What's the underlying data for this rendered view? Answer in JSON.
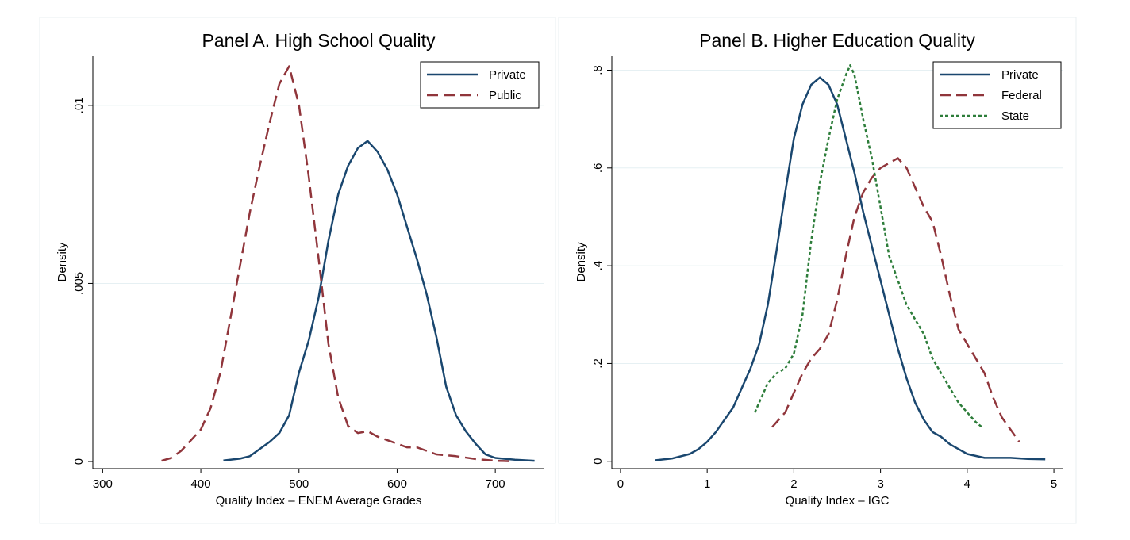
{
  "chart_data": [
    {
      "type": "line",
      "title": "Panel A. High School Quality",
      "xlabel": "Quality Index – ENEM Average Grades",
      "ylabel": "Density",
      "xlim": [
        290,
        750
      ],
      "ylim": [
        -0.0002,
        0.0114
      ],
      "x_ticks": [
        {
          "value": 300,
          "label": "300"
        },
        {
          "value": 400,
          "label": "400"
        },
        {
          "value": 500,
          "label": "500"
        },
        {
          "value": 600,
          "label": "600"
        },
        {
          "value": 700,
          "label": "700"
        }
      ],
      "y_ticks": [
        {
          "value": 0,
          "label": "0"
        },
        {
          "value": 0.005,
          "label": ".005"
        },
        {
          "value": 0.01,
          "label": ".01"
        }
      ],
      "grid": true,
      "legend_position": "top-right",
      "series": [
        {
          "name": "Private",
          "color": "#1a476f",
          "dash": "solid",
          "points": [
            [
              423,
              3e-05
            ],
            [
              440,
              8e-05
            ],
            [
              450,
              0.00015
            ],
            [
              460,
              0.00035
            ],
            [
              470,
              0.00055
            ],
            [
              480,
              0.0008
            ],
            [
              490,
              0.0013
            ],
            [
              500,
              0.0025
            ],
            [
              510,
              0.0034
            ],
            [
              520,
              0.0046
            ],
            [
              530,
              0.0062
            ],
            [
              540,
              0.0075
            ],
            [
              550,
              0.0083
            ],
            [
              560,
              0.0088
            ],
            [
              570,
              0.009
            ],
            [
              580,
              0.0087
            ],
            [
              590,
              0.0082
            ],
            [
              600,
              0.0075
            ],
            [
              610,
              0.0066
            ],
            [
              620,
              0.0057
            ],
            [
              630,
              0.0047
            ],
            [
              640,
              0.0035
            ],
            [
              650,
              0.0021
            ],
            [
              660,
              0.0013
            ],
            [
              670,
              0.00085
            ],
            [
              680,
              0.0005
            ],
            [
              690,
              0.0002
            ],
            [
              700,
              0.0001
            ],
            [
              720,
              5e-05
            ],
            [
              740,
              2e-05
            ]
          ]
        },
        {
          "name": "Public",
          "color": "#90353b",
          "dash": "long-dash",
          "points": [
            [
              360,
              2e-05
            ],
            [
              370,
              0.0001
            ],
            [
              380,
              0.0003
            ],
            [
              390,
              0.0006
            ],
            [
              400,
              0.0009
            ],
            [
              410,
              0.0015
            ],
            [
              420,
              0.0025
            ],
            [
              430,
              0.004
            ],
            [
              440,
              0.0055
            ],
            [
              450,
              0.007
            ],
            [
              460,
              0.0083
            ],
            [
              470,
              0.0095
            ],
            [
              480,
              0.0106
            ],
            [
              490,
              0.0111
            ],
            [
              500,
              0.01
            ],
            [
              510,
              0.008
            ],
            [
              520,
              0.0057
            ],
            [
              530,
              0.0033
            ],
            [
              540,
              0.0018
            ],
            [
              550,
              0.001
            ],
            [
              560,
              0.0008
            ],
            [
              570,
              0.00085
            ],
            [
              580,
              0.0007
            ],
            [
              590,
              0.0006
            ],
            [
              600,
              0.0005
            ],
            [
              610,
              0.0004
            ],
            [
              620,
              0.0004
            ],
            [
              630,
              0.0003
            ],
            [
              640,
              0.0002
            ],
            [
              660,
              0.00015
            ],
            [
              680,
              7e-05
            ],
            [
              700,
              2e-05
            ],
            [
              715,
              1e-05
            ]
          ]
        }
      ]
    },
    {
      "type": "line",
      "title": "Panel B. Higher Education Quality",
      "xlabel": "Quality Index – IGC",
      "ylabel": "Density",
      "xlim": [
        -0.1,
        5.1
      ],
      "ylim": [
        -0.015,
        0.83
      ],
      "x_ticks": [
        {
          "value": 0,
          "label": "0"
        },
        {
          "value": 1,
          "label": "1"
        },
        {
          "value": 2,
          "label": "2"
        },
        {
          "value": 3,
          "label": "3"
        },
        {
          "value": 4,
          "label": "4"
        },
        {
          "value": 5,
          "label": "5"
        }
      ],
      "y_ticks": [
        {
          "value": 0,
          "label": "0"
        },
        {
          "value": 0.2,
          "label": ".2"
        },
        {
          "value": 0.4,
          "label": ".4"
        },
        {
          "value": 0.6,
          "label": ".6"
        },
        {
          "value": 0.8,
          "label": ".8"
        }
      ],
      "grid": true,
      "legend_position": "top-right",
      "series": [
        {
          "name": "Private",
          "color": "#1a476f",
          "dash": "solid",
          "points": [
            [
              0.4,
              0.002
            ],
            [
              0.6,
              0.006
            ],
            [
              0.8,
              0.015
            ],
            [
              0.9,
              0.025
            ],
            [
              1.0,
              0.04
            ],
            [
              1.1,
              0.06
            ],
            [
              1.2,
              0.085
            ],
            [
              1.3,
              0.11
            ],
            [
              1.4,
              0.15
            ],
            [
              1.5,
              0.19
            ],
            [
              1.6,
              0.24
            ],
            [
              1.7,
              0.32
            ],
            [
              1.8,
              0.43
            ],
            [
              1.9,
              0.55
            ],
            [
              2.0,
              0.66
            ],
            [
              2.1,
              0.73
            ],
            [
              2.2,
              0.77
            ],
            [
              2.3,
              0.785
            ],
            [
              2.4,
              0.77
            ],
            [
              2.5,
              0.73
            ],
            [
              2.6,
              0.66
            ],
            [
              2.7,
              0.59
            ],
            [
              2.8,
              0.51
            ],
            [
              2.9,
              0.44
            ],
            [
              3.0,
              0.37
            ],
            [
              3.1,
              0.3
            ],
            [
              3.2,
              0.23
            ],
            [
              3.3,
              0.17
            ],
            [
              3.4,
              0.12
            ],
            [
              3.5,
              0.085
            ],
            [
              3.6,
              0.06
            ],
            [
              3.7,
              0.05
            ],
            [
              3.8,
              0.035
            ],
            [
              3.9,
              0.025
            ],
            [
              4.0,
              0.015
            ],
            [
              4.2,
              0.007
            ],
            [
              4.5,
              0.007
            ],
            [
              4.7,
              0.005
            ],
            [
              4.9,
              0.004
            ]
          ]
        },
        {
          "name": "Federal",
          "color": "#90353b",
          "dash": "long-dash",
          "points": [
            [
              1.75,
              0.07
            ],
            [
              1.9,
              0.1
            ],
            [
              2.0,
              0.14
            ],
            [
              2.1,
              0.18
            ],
            [
              2.2,
              0.21
            ],
            [
              2.3,
              0.23
            ],
            [
              2.4,
              0.26
            ],
            [
              2.5,
              0.33
            ],
            [
              2.6,
              0.42
            ],
            [
              2.7,
              0.5
            ],
            [
              2.8,
              0.55
            ],
            [
              2.9,
              0.58
            ],
            [
              3.0,
              0.6
            ],
            [
              3.1,
              0.61
            ],
            [
              3.2,
              0.62
            ],
            [
              3.3,
              0.6
            ],
            [
              3.4,
              0.56
            ],
            [
              3.5,
              0.52
            ],
            [
              3.6,
              0.49
            ],
            [
              3.7,
              0.42
            ],
            [
              3.8,
              0.34
            ],
            [
              3.9,
              0.27
            ],
            [
              4.0,
              0.24
            ],
            [
              4.1,
              0.21
            ],
            [
              4.2,
              0.18
            ],
            [
              4.3,
              0.13
            ],
            [
              4.4,
              0.09
            ],
            [
              4.5,
              0.065
            ],
            [
              4.6,
              0.04
            ]
          ]
        },
        {
          "name": "State",
          "color": "#2d7d3a",
          "dash": "dotted",
          "points": [
            [
              1.55,
              0.1
            ],
            [
              1.7,
              0.16
            ],
            [
              1.8,
              0.18
            ],
            [
              1.9,
              0.19
            ],
            [
              2.0,
              0.22
            ],
            [
              2.1,
              0.3
            ],
            [
              2.2,
              0.45
            ],
            [
              2.3,
              0.57
            ],
            [
              2.4,
              0.66
            ],
            [
              2.5,
              0.74
            ],
            [
              2.6,
              0.79
            ],
            [
              2.65,
              0.81
            ],
            [
              2.7,
              0.79
            ],
            [
              2.8,
              0.7
            ],
            [
              2.9,
              0.62
            ],
            [
              3.0,
              0.52
            ],
            [
              3.1,
              0.42
            ],
            [
              3.2,
              0.37
            ],
            [
              3.3,
              0.32
            ],
            [
              3.4,
              0.29
            ],
            [
              3.5,
              0.26
            ],
            [
              3.6,
              0.21
            ],
            [
              3.7,
              0.18
            ],
            [
              3.8,
              0.15
            ],
            [
              3.9,
              0.12
            ],
            [
              4.0,
              0.1
            ],
            [
              4.1,
              0.08
            ],
            [
              4.17,
              0.07
            ]
          ]
        }
      ]
    }
  ]
}
